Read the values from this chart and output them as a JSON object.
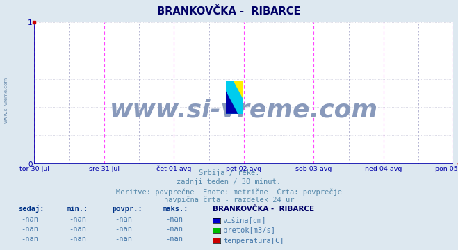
{
  "title": "BRANKOVČKA -  RIBARCE",
  "bg_color": "#dde8f0",
  "plot_bg_color": "#ffffff",
  "x_labels": [
    "tor 30 jul",
    "sre 31 jul",
    "čet 01 avg",
    "pet 02 avg",
    "sob 03 avg",
    "ned 04 avg",
    "pon 05 avg"
  ],
  "y_ticks": [
    0,
    1
  ],
  "ylim": [
    0,
    1
  ],
  "grid_color_h": "#ccccdd",
  "grid_color_v_major": "#ff44ff",
  "grid_color_v_minor": "#aaaacc",
  "axis_color": "#0000aa",
  "title_color": "#000066",
  "subtitle_line1": "Srbija / reke.",
  "subtitle_line2": "zadnji teden / 30 minut.",
  "subtitle_line3": "Meritve: povprečne  Enote: metrične  Črta: povprečje",
  "subtitle_line4": "navpična črta - razdelek 24 ur",
  "legend_title": "BRANKOVČKA -  RIBARCE",
  "legend_items": [
    {
      "label": "višina[cm]",
      "color": "#0000cc"
    },
    {
      "label": "pretok[m3/s]",
      "color": "#00bb00"
    },
    {
      "label": "temperatura[C]",
      "color": "#cc0000"
    }
  ],
  "table_headers": [
    "sedaj:",
    "min.:",
    "povpr.:",
    "maks.:"
  ],
  "table_rows": [
    [
      "-nan",
      "-nan",
      "-nan",
      "-nan"
    ],
    [
      "-nan",
      "-nan",
      "-nan",
      "-nan"
    ],
    [
      "-nan",
      "-nan",
      "-nan",
      "-nan"
    ]
  ],
  "watermark": "www.si-vreme.com",
  "watermark_color": "#8899bb",
  "left_label": "www.si-vreme.com",
  "num_days": 7
}
